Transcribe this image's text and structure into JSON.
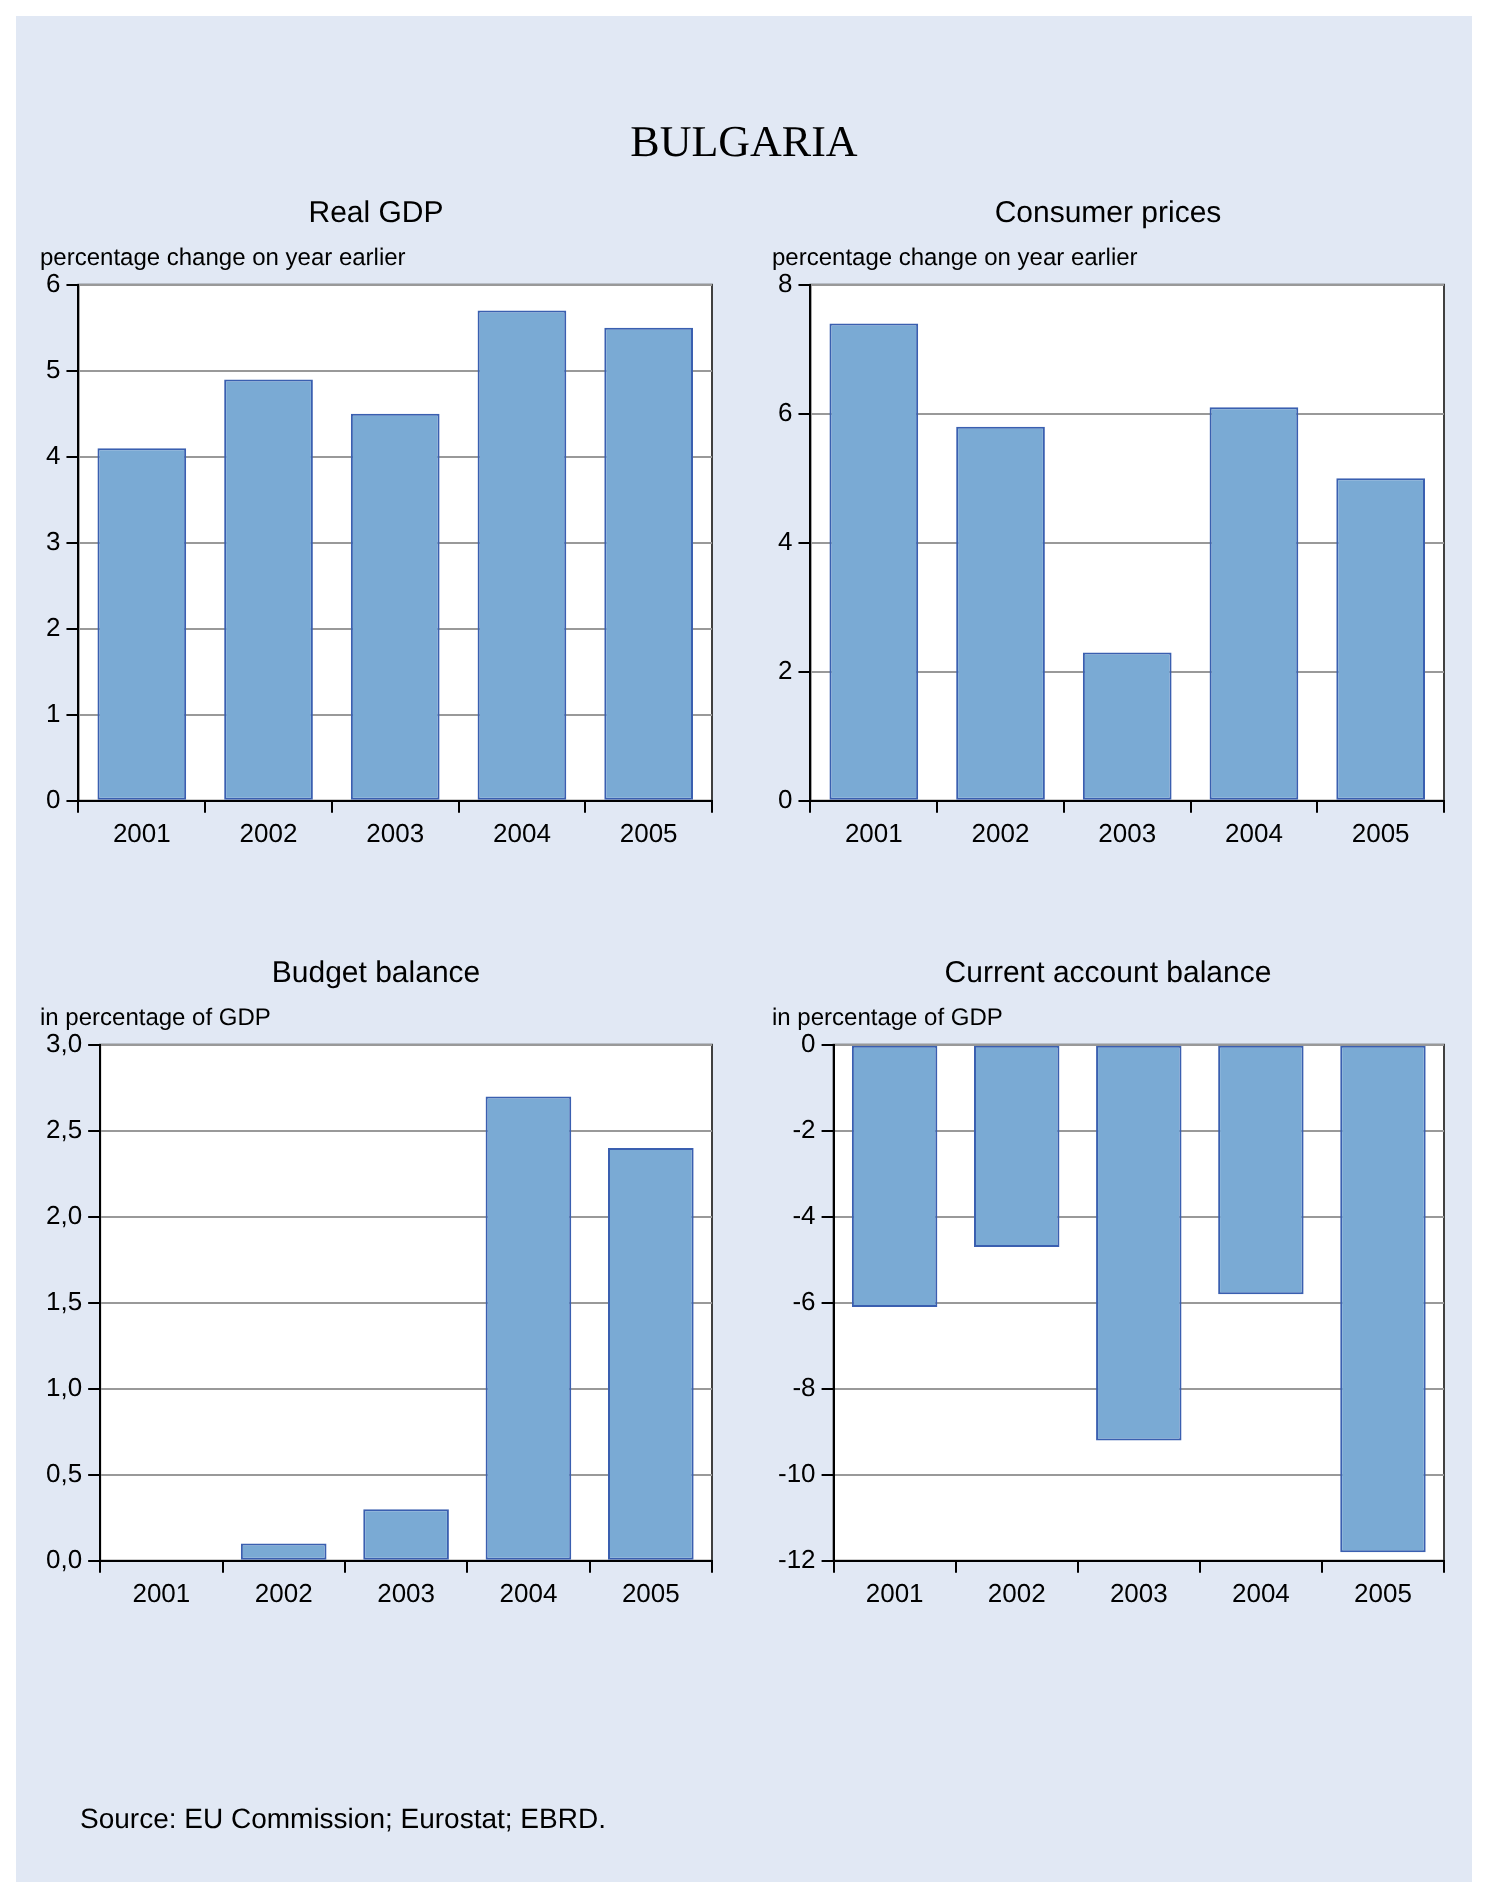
{
  "chart_data": [
    {
      "type": "bar",
      "title": "Real GDP",
      "ylabel": "percentage change on year earlier",
      "categories": [
        "2001",
        "2002",
        "2003",
        "2004",
        "2005"
      ],
      "values": [
        4.1,
        4.9,
        4.5,
        5.7,
        5.5
      ],
      "color": "#7aaad4",
      "ylim": [
        0,
        6
      ],
      "yticks": [
        0,
        1,
        2,
        3,
        4,
        5,
        6
      ],
      "grid": "y",
      "legend": false,
      "annotations": [
        "BULGARIA"
      ]
    },
    {
      "type": "bar",
      "title": "Consumer prices",
      "ylabel": "percentage change on year earlier",
      "categories": [
        "2001",
        "2002",
        "2003",
        "2004",
        "2005"
      ],
      "values": [
        7.4,
        5.8,
        2.3,
        6.1,
        5.0
      ],
      "color": "#7aaad4",
      "ylim": [
        0,
        8
      ],
      "yticks": [
        0,
        2,
        4,
        6,
        8
      ],
      "grid": "y",
      "legend": false
    },
    {
      "type": "bar",
      "title": "Budget balance",
      "ylabel": "in percentage of GDP",
      "categories": [
        "2001",
        "2002",
        "2003",
        "2004",
        "2005"
      ],
      "values": [
        0.0,
        0.1,
        0.3,
        2.7,
        2.4
      ],
      "color": "#7aaad4",
      "ylim": [
        0,
        3
      ],
      "yticks": [
        {
          "value": 0,
          "label": "0,0"
        },
        {
          "value": 0.5,
          "label": "0,5"
        },
        {
          "value": 1,
          "label": "1,0"
        },
        {
          "value": 1.5,
          "label": "1,5"
        },
        {
          "value": 2,
          "label": "2,0"
        },
        {
          "value": 2.5,
          "label": "2,5"
        },
        {
          "value": 3,
          "label": "3,0"
        }
      ],
      "grid": "y",
      "legend": false
    },
    {
      "type": "bar",
      "title": "Current account balance",
      "ylabel": "in percentage of GDP",
      "categories": [
        "2001",
        "2002",
        "2003",
        "2004",
        "2005"
      ],
      "values": [
        -6.1,
        -4.7,
        -9.2,
        -5.8,
        -11.8
      ],
      "color": "#7aaad4",
      "ylim": [
        -12,
        0
      ],
      "yticks": [
        -12,
        -10,
        -8,
        -6,
        -4,
        -2,
        0
      ],
      "grid": "y",
      "legend": false,
      "annotations": [
        "Source: EU Commission; Eurostat; EBRD."
      ]
    }
  ]
}
